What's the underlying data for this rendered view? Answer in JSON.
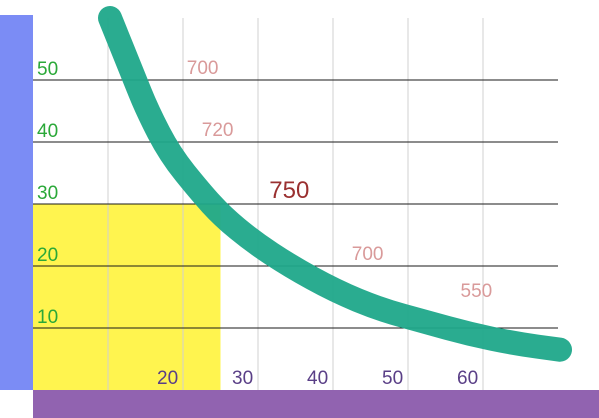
{
  "chart_data": {
    "type": "line",
    "title": "",
    "xlabel": "",
    "ylabel": "",
    "xlim": [
      0,
      75
    ],
    "ylim": [
      0,
      60
    ],
    "grid": true,
    "x_ticks": [
      "20",
      "30",
      "40",
      "50",
      "60"
    ],
    "y_ticks": [
      "10",
      "20",
      "30",
      "40",
      "50"
    ],
    "series": [
      {
        "color": "#1fa88a",
        "points": [
          [
            10,
            60
          ],
          [
            13,
            51
          ],
          [
            15,
            45
          ],
          [
            18,
            38
          ],
          [
            22,
            32
          ],
          [
            25,
            28
          ],
          [
            29,
            24
          ],
          [
            34,
            20
          ],
          [
            40,
            16
          ],
          [
            46,
            13
          ],
          [
            52,
            11
          ],
          [
            58,
            9
          ],
          [
            64,
            7.5
          ],
          [
            70,
            6.5
          ]
        ]
      }
    ],
    "highlight_rect": {
      "x_range": [
        0,
        25
      ],
      "y_range": [
        0,
        30
      ],
      "color": "#fff44f"
    },
    "annotations": [
      {
        "text": "700",
        "x": 20.5,
        "y": 50.2,
        "color": "#d99a9a",
        "size": "small"
      },
      {
        "text": "720",
        "x": 22.5,
        "y": 40.2,
        "color": "#d99a9a",
        "size": "small"
      },
      {
        "text": "750",
        "x": 31.5,
        "y": 30.2,
        "color": "#9a3030",
        "size": "large"
      },
      {
        "text": "700",
        "x": 42.5,
        "y": 20.2,
        "color": "#d99a9a",
        "size": "small"
      },
      {
        "text": "550",
        "x": 57,
        "y": 14.2,
        "color": "#d99a9a",
        "size": "small"
      }
    ],
    "colors": {
      "left_bar": "#7b8cf5",
      "bottom_bar": "#9163b0",
      "y_tick": "#2aa838",
      "x_tick": "#5a3f87",
      "h_grid": "#1a1a1a",
      "v_grid": "#d0d0d0"
    }
  }
}
